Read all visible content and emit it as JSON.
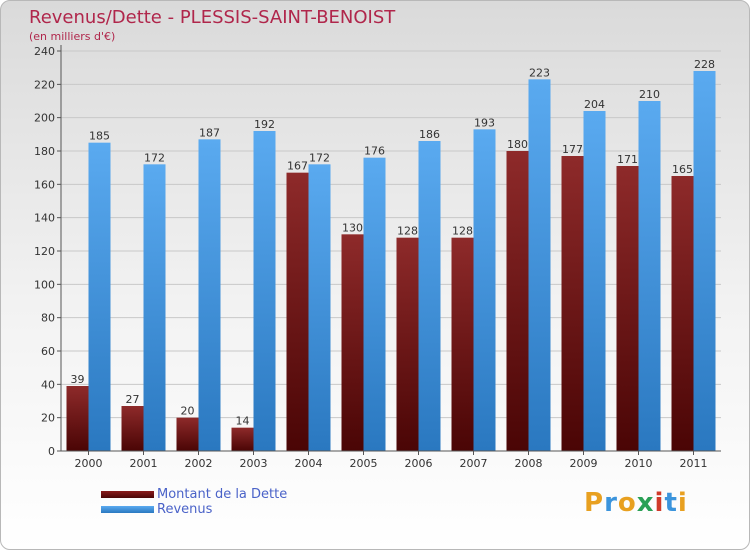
{
  "header": {
    "title": "Revenus/Dette - PLESSIS-SAINT-BENOIST",
    "subtitle": "(en milliers d'€)"
  },
  "legend": {
    "items": [
      {
        "label": "Montant de la Dette",
        "color": "#6b0f0f"
      },
      {
        "label": "Revenus",
        "color": "#3b94dc"
      }
    ]
  },
  "brand": {
    "name": "Proxiti",
    "letters": [
      {
        "ch": "P",
        "color": "#e8a020"
      },
      {
        "ch": "r",
        "color": "#3b94dc"
      },
      {
        "ch": "o",
        "color": "#e8a020"
      },
      {
        "ch": "x",
        "color": "#2aa055"
      },
      {
        "ch": "i",
        "color": "#d03a2a"
      },
      {
        "ch": "t",
        "color": "#3b94dc"
      },
      {
        "ch": "i",
        "color": "#e8a020"
      }
    ]
  },
  "colors": {
    "title": "#b0264b",
    "dette": "#6b0f0f",
    "revenus": "#3b94dc",
    "grid": "#c8c8c8",
    "axis": "#555555"
  },
  "chart_data": {
    "type": "bar",
    "title": "Revenus/Dette - PLESSIS-SAINT-BENOIST",
    "subtitle": "(en milliers d'€)",
    "xlabel": "",
    "ylabel": "",
    "categories": [
      "2000",
      "2001",
      "2002",
      "2003",
      "2004",
      "2005",
      "2006",
      "2007",
      "2008",
      "2009",
      "2010",
      "2011"
    ],
    "series": [
      {
        "name": "Montant de la Dette",
        "values": [
          39,
          27,
          20,
          14,
          167,
          130,
          128,
          128,
          180,
          177,
          171,
          165
        ]
      },
      {
        "name": "Revenus",
        "values": [
          185,
          172,
          187,
          192,
          172,
          176,
          186,
          193,
          223,
          204,
          210,
          228
        ]
      }
    ],
    "ylim": [
      0,
      240
    ],
    "yticks": [
      0,
      20,
      40,
      60,
      80,
      100,
      120,
      140,
      160,
      180,
      200,
      220,
      240
    ],
    "grid": true,
    "legend_position": "bottom-left"
  }
}
